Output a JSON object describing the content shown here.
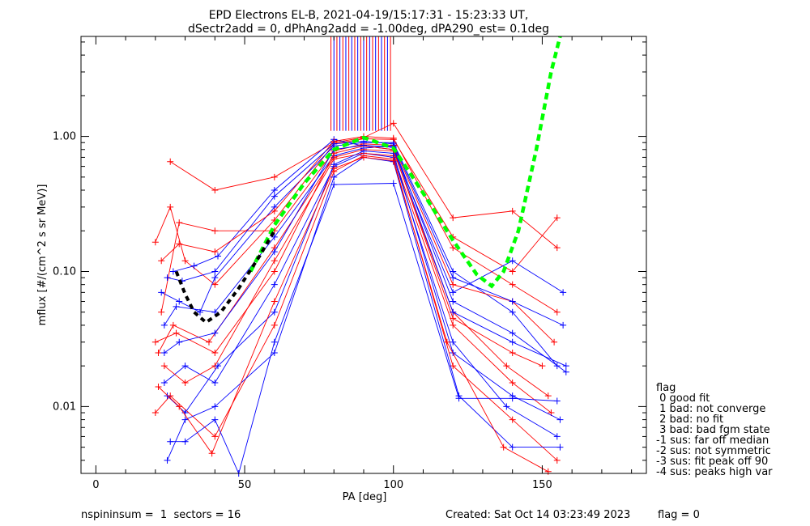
{
  "header": {
    "title_line1": "EPD Electrons EL-B, 2021-04-19/15:17:31 - 15:23:33 UT,",
    "title_line2": "dSectr2add = 0, dPhAng2add = -1.00deg, dPA290_est=   0.1deg"
  },
  "footer": {
    "left": "nspininsum =  1  sectors = 16",
    "created": "Created: Sat Oct 14 03:23:49 2023",
    "flag": "flag = 0"
  },
  "legend": {
    "title": "flag",
    "entries": [
      " 0 good fit",
      " 1 bad: not converge",
      " 2 bad: no fit",
      " 3 bad: bad fgm state",
      "-1 sus: far off median",
      "-2 sus: not symmetric",
      "-3 sus: fit peak off 90",
      "-4 sus: peaks high var"
    ]
  },
  "chart_data": {
    "type": "line",
    "title": "EPD Electrons EL-B, 2021-04-19/15:17:31 - 15:23:33 UT,",
    "subtitle": "dSectr2add = 0, dPhAng2add = -1.00deg, dPA290_est=   0.1deg",
    "xlabel": "PA [deg]",
    "ylabel": "mflux [#/(cm^2 s sr MeV)]",
    "xlim": [
      -5,
      185
    ],
    "ylim": [
      0.0032,
      5.5
    ],
    "yscale": "log",
    "grid": false,
    "x_ticks": [
      0,
      50,
      100,
      150
    ],
    "x_tick_labels": [
      "0",
      "50",
      "100",
      "150"
    ],
    "y_ticks": [
      0.01,
      0.1,
      1.0
    ],
    "y_tick_labels": [
      "0.01",
      "0.10",
      "1.00"
    ],
    "colors": {
      "red": "#ff0000",
      "blue": "#0000ff",
      "fit_green": "#00ff00",
      "fit_black": "#000000"
    },
    "series": [
      {
        "color": "#ff0000",
        "points": [
          [
            20,
            0.165
          ],
          [
            25,
            0.3
          ],
          [
            30,
            0.12
          ],
          [
            40,
            0.08
          ],
          [
            60,
            0.24
          ],
          [
            80,
            0.88
          ],
          [
            90,
            0.96
          ],
          [
            100,
            0.95
          ],
          [
            120,
            0.18
          ],
          [
            140,
            0.1
          ],
          [
            155,
            0.25
          ]
        ]
      },
      {
        "color": "#0000ff",
        "points": [
          [
            22,
            0.07
          ],
          [
            28,
            0.06
          ],
          [
            35,
            0.05
          ],
          [
            40,
            0.09
          ],
          [
            60,
            0.3
          ],
          [
            80,
            0.85
          ],
          [
            90,
            0.9
          ],
          [
            100,
            0.9
          ],
          [
            120,
            0.1
          ],
          [
            140,
            0.05
          ],
          [
            155,
            0.02
          ]
        ]
      },
      {
        "color": "#ff0000",
        "points": [
          [
            21,
            0.025
          ],
          [
            26,
            0.04
          ],
          [
            38,
            0.03
          ],
          [
            60,
            0.15
          ],
          [
            80,
            0.7
          ],
          [
            90,
            0.8
          ],
          [
            100,
            0.78
          ],
          [
            120,
            0.05
          ],
          [
            138,
            0.02
          ],
          [
            152,
            0.012
          ]
        ]
      },
      {
        "color": "#0000ff",
        "points": [
          [
            23,
            0.015
          ],
          [
            30,
            0.02
          ],
          [
            40,
            0.015
          ],
          [
            60,
            0.08
          ],
          [
            80,
            0.6
          ],
          [
            90,
            0.75
          ],
          [
            100,
            0.7
          ],
          [
            120,
            0.03
          ],
          [
            138,
            0.01
          ],
          [
            155,
            0.006
          ]
        ]
      },
      {
        "color": "#ff0000",
        "points": [
          [
            20,
            0.009
          ],
          [
            25,
            0.012
          ],
          [
            40,
            0.006
          ],
          [
            60,
            0.04
          ],
          [
            80,
            0.55
          ],
          [
            90,
            0.72
          ],
          [
            100,
            0.68
          ],
          [
            120,
            0.02
          ],
          [
            140,
            0.008
          ],
          [
            155,
            0.004
          ]
        ]
      },
      {
        "color": "#0000ff",
        "points": [
          [
            24,
            0.004
          ],
          [
            30,
            0.008
          ],
          [
            40,
            0.01
          ],
          [
            60,
            0.025
          ],
          [
            80,
            0.5
          ],
          [
            90,
            0.7
          ],
          [
            100,
            0.65
          ],
          [
            122,
            0.012
          ],
          [
            140,
            0.005
          ],
          [
            156,
            0.005
          ]
        ]
      },
      {
        "color": "#ff0000",
        "points": [
          [
            25,
            0.65
          ],
          [
            40,
            0.4
          ],
          [
            60,
            0.5
          ],
          [
            80,
            0.9
          ],
          [
            90,
            0.98
          ],
          [
            100,
            1.25
          ],
          [
            120,
            0.25
          ],
          [
            140,
            0.28
          ],
          [
            155,
            0.15
          ]
        ]
      },
      {
        "color": "#0000ff",
        "points": [
          [
            26,
            0.1
          ],
          [
            33,
            0.11
          ],
          [
            41,
            0.13
          ],
          [
            60,
            0.4
          ],
          [
            80,
            0.95
          ],
          [
            90,
            0.85
          ],
          [
            100,
            0.8
          ],
          [
            120,
            0.07
          ],
          [
            140,
            0.12
          ],
          [
            157,
            0.07
          ]
        ]
      },
      {
        "color": "#ff0000",
        "points": [
          [
            22,
            0.05
          ],
          [
            28,
            0.23
          ],
          [
            40,
            0.2
          ],
          [
            60,
            0.2
          ],
          [
            80,
            0.78
          ],
          [
            90,
            0.88
          ],
          [
            100,
            0.86
          ],
          [
            120,
            0.08
          ],
          [
            140,
            0.06
          ],
          [
            154,
            0.03
          ]
        ]
      },
      {
        "color": "#0000ff",
        "points": [
          [
            23,
            0.04
          ],
          [
            27,
            0.055
          ],
          [
            40,
            0.05
          ],
          [
            60,
            0.18
          ],
          [
            80,
            0.72
          ],
          [
            90,
            0.82
          ],
          [
            100,
            0.85
          ],
          [
            120,
            0.06
          ],
          [
            140,
            0.035
          ],
          [
            158,
            0.018
          ]
        ]
      },
      {
        "color": "#ff0000",
        "points": [
          [
            23,
            0.02
          ],
          [
            30,
            0.015
          ],
          [
            40,
            0.02
          ],
          [
            60,
            0.12
          ],
          [
            80,
            0.68
          ],
          [
            90,
            0.75
          ],
          [
            100,
            0.72
          ],
          [
            120,
            0.04
          ],
          [
            140,
            0.015
          ],
          [
            153,
            0.009
          ]
        ]
      },
      {
        "color": "#0000ff",
        "points": [
          [
            24,
            0.012
          ],
          [
            30,
            0.009
          ],
          [
            41,
            0.02
          ],
          [
            60,
            0.05
          ],
          [
            80,
            0.62
          ],
          [
            90,
            0.78
          ],
          [
            100,
            0.75
          ],
          [
            120,
            0.025
          ],
          [
            140,
            0.012
          ],
          [
            156,
            0.008
          ]
        ]
      },
      {
        "color": "#ff0000",
        "points": [
          [
            21,
            0.014
          ],
          [
            28,
            0.01
          ],
          [
            39,
            0.0045
          ],
          [
            60,
            0.06
          ],
          [
            80,
            0.58
          ],
          [
            90,
            0.7
          ],
          [
            100,
            0.66
          ],
          [
            118,
            0.03
          ],
          [
            137,
            0.005
          ],
          [
            152,
            0.0033
          ]
        ]
      },
      {
        "color": "#0000ff",
        "points": [
          [
            25,
            0.0055
          ],
          [
            30,
            0.0055
          ],
          [
            40,
            0.008
          ],
          [
            48,
            0.0032
          ],
          [
            60,
            0.03
          ],
          [
            80,
            0.44
          ],
          [
            100,
            0.45
          ],
          [
            122,
            0.0115
          ],
          [
            140,
            0.0115
          ],
          [
            155,
            0.011
          ]
        ]
      },
      {
        "color": "#ff0000",
        "points": [
          [
            22,
            0.12
          ],
          [
            28,
            0.16
          ],
          [
            40,
            0.14
          ],
          [
            60,
            0.28
          ],
          [
            80,
            0.92
          ],
          [
            90,
            1.0
          ],
          [
            100,
            0.97
          ],
          [
            120,
            0.15
          ],
          [
            140,
            0.08
          ],
          [
            155,
            0.05
          ]
        ]
      },
      {
        "color": "#0000ff",
        "points": [
          [
            24,
            0.09
          ],
          [
            29,
            0.085
          ],
          [
            40,
            0.1
          ],
          [
            60,
            0.36
          ],
          [
            80,
            0.88
          ],
          [
            90,
            0.92
          ],
          [
            100,
            0.88
          ],
          [
            120,
            0.09
          ],
          [
            140,
            0.06
          ],
          [
            157,
            0.04
          ]
        ]
      },
      {
        "color": "#ff0000",
        "points": [
          [
            20,
            0.03
          ],
          [
            27,
            0.035
          ],
          [
            40,
            0.025
          ],
          [
            60,
            0.1
          ],
          [
            80,
            0.75
          ],
          [
            90,
            0.85
          ],
          [
            100,
            0.8
          ],
          [
            120,
            0.045
          ],
          [
            140,
            0.025
          ],
          [
            150,
            0.02
          ]
        ]
      },
      {
        "color": "#0000ff",
        "points": [
          [
            23,
            0.025
          ],
          [
            28,
            0.03
          ],
          [
            40,
            0.035
          ],
          [
            60,
            0.14
          ],
          [
            80,
            0.8
          ],
          [
            90,
            0.86
          ],
          [
            100,
            0.83
          ],
          [
            120,
            0.05
          ],
          [
            140,
            0.03
          ],
          [
            158,
            0.02
          ]
        ]
      }
    ],
    "spikes": {
      "x_range": [
        79,
        100
      ],
      "y_from": 1.1,
      "y_to": 5.5,
      "red_x": [
        79,
        81,
        83,
        85,
        87,
        89,
        91,
        93,
        95,
        97,
        99
      ],
      "blue_x": [
        80,
        82,
        84,
        86,
        88,
        90,
        92,
        94,
        96,
        98
      ]
    },
    "fit_green": {
      "color": "#00ff00",
      "points": [
        [
          52,
          0.1
        ],
        [
          60,
          0.22
        ],
        [
          70,
          0.45
        ],
        [
          80,
          0.8
        ],
        [
          90,
          0.98
        ],
        [
          100,
          0.82
        ],
        [
          110,
          0.38
        ],
        [
          120,
          0.17
        ],
        [
          128,
          0.095
        ],
        [
          133,
          0.078
        ],
        [
          137,
          0.1
        ],
        [
          142,
          0.2
        ],
        [
          148,
          0.8
        ],
        [
          153,
          3.0
        ],
        [
          156,
          5.5
        ]
      ]
    },
    "fit_black": {
      "color": "#000000",
      "points": [
        [
          27,
          0.1
        ],
        [
          30,
          0.068
        ],
        [
          33,
          0.05
        ],
        [
          37,
          0.042
        ],
        [
          42,
          0.05
        ],
        [
          48,
          0.075
        ],
        [
          55,
          0.13
        ],
        [
          60,
          0.2
        ]
      ]
    }
  }
}
